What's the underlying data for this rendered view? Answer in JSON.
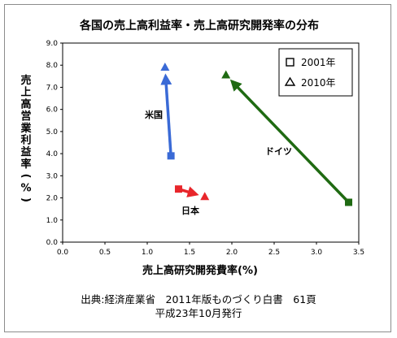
{
  "chart_data": {
    "type": "scatter",
    "title": "各国の売上高利益率・売上高研究開発率の分布",
    "xlabel": "売上高研究開発費率(%)",
    "ylabel": [
      "売",
      "上",
      "高",
      "営",
      "業",
      "利",
      "益",
      "率",
      "(",
      "%",
      ")"
    ],
    "xlim": [
      0,
      3.5
    ],
    "ylim": [
      0,
      9.0
    ],
    "xticks": [
      "0.0",
      "0.5",
      "1.0",
      "1.5",
      "2.0",
      "2.5",
      "3.0",
      "3.5"
    ],
    "yticks": [
      "0.0",
      "1.0",
      "2.0",
      "3.0",
      "4.0",
      "5.0",
      "6.0",
      "7.0",
      "8.0",
      "9.0"
    ],
    "legend_position": "top-right",
    "legend": [
      {
        "marker": "square",
        "label": "2001年"
      },
      {
        "marker": "triangle",
        "label": "2010年"
      }
    ],
    "series": [
      {
        "name": "米国",
        "color": "#3a6ad6",
        "points": [
          {
            "x": 1.28,
            "y": 3.9,
            "year": "2001年"
          },
          {
            "x": 1.21,
            "y": 7.9,
            "year": "2010年"
          }
        ]
      },
      {
        "name": "日本",
        "color": "#e8262b",
        "points": [
          {
            "x": 1.37,
            "y": 2.4,
            "year": "2001年"
          },
          {
            "x": 1.68,
            "y": 2.05,
            "year": "2010年"
          }
        ]
      },
      {
        "name": "ドイツ",
        "color": "#1f6a12",
        "points": [
          {
            "x": 3.38,
            "y": 1.8,
            "year": "2001年"
          },
          {
            "x": 1.93,
            "y": 7.55,
            "year": "2010年"
          }
        ]
      }
    ]
  },
  "footer": {
    "line1": "出典:経済産業省　2011年版ものづくり白書　61頁",
    "line2": "平成23年10月発行"
  }
}
